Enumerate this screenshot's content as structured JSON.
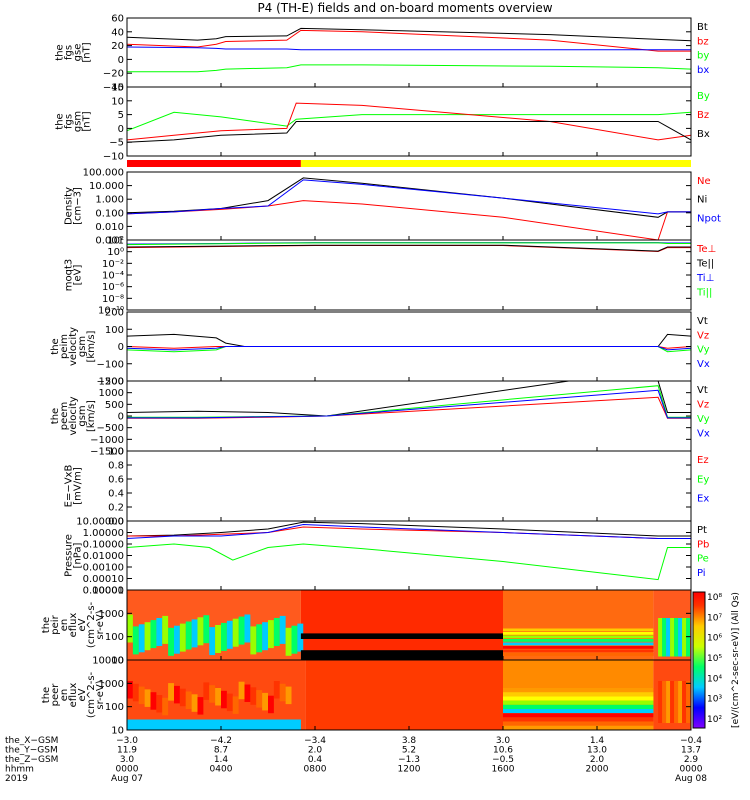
{
  "title": "P4 (TH-E) fields and on-board moments overview",
  "colors": {
    "black": "#000000",
    "red": "#ff0000",
    "green": "#00ff00",
    "blue": "#0000ff",
    "yellow": "#ffff00"
  },
  "chart_data": [
    {
      "type": "line",
      "ylabel_lines": [
        "the",
        "fgs",
        "gse",
        "[nT]"
      ],
      "ylim": [
        -40,
        60
      ],
      "yticks": [
        "60",
        "40",
        "20",
        "0",
        "−20",
        "−40"
      ],
      "legend": [
        {
          "name": "Bt",
          "color": "black"
        },
        {
          "name": "bz",
          "color": "red"
        },
        {
          "name": "by",
          "color": "green"
        },
        {
          "name": "bx",
          "color": "blue"
        }
      ],
      "series": [
        {
          "name": "Bt",
          "color": "black",
          "x": [
            0,
            3.0,
            3.8,
            4.2,
            6.8,
            7.4,
            10.0,
            18.0,
            22.6,
            24
          ],
          "y": [
            32,
            28,
            30,
            33,
            34,
            45,
            43,
            36,
            29,
            27
          ]
        },
        {
          "name": "bz",
          "color": "red",
          "x": [
            0,
            3.0,
            3.8,
            4.2,
            6.8,
            7.4,
            10.0,
            18.0,
            22.6,
            24
          ],
          "y": [
            22,
            18,
            22,
            26,
            28,
            42,
            40,
            28,
            12,
            12
          ]
        },
        {
          "name": "by",
          "color": "green",
          "x": [
            0,
            3.0,
            3.8,
            4.2,
            6.8,
            7.4,
            10.0,
            18.0,
            22.6,
            24
          ],
          "y": [
            -18,
            -18,
            -16,
            -14,
            -12,
            -8,
            -8,
            -10,
            -12,
            -14
          ]
        },
        {
          "name": "bx",
          "color": "blue",
          "x": [
            0,
            3.0,
            3.8,
            4.2,
            6.8,
            7.4,
            10.0,
            18.0,
            22.6,
            24
          ],
          "y": [
            18,
            17,
            16,
            15,
            15,
            14,
            14,
            14,
            14,
            14
          ]
        }
      ]
    },
    {
      "type": "line",
      "ylabel_lines": [
        "the",
        "fgs",
        "gsm",
        "[nT]"
      ],
      "ylim": [
        -15,
        15
      ],
      "yticks": [
        "15",
        "10",
        "5",
        "0",
        "−5",
        "−10"
      ],
      "legend": [
        {
          "name": "By",
          "color": "green"
        },
        {
          "name": "Bz",
          "color": "red"
        },
        {
          "name": "Bx",
          "color": "black"
        }
      ],
      "series": [
        {
          "name": "By",
          "color": "green",
          "x": [
            0,
            2,
            4,
            6.8,
            7.2,
            10,
            18,
            22.6,
            24
          ],
          "y": [
            -4,
            4,
            2,
            -2,
            1,
            3,
            3,
            3,
            4
          ]
        },
        {
          "name": "Bz",
          "color": "red",
          "x": [
            0,
            2,
            4,
            6.8,
            7.2,
            10,
            18,
            22.6,
            24
          ],
          "y": [
            -8,
            -6,
            -4,
            -3,
            8,
            7,
            0,
            -8,
            -6
          ]
        },
        {
          "name": "Bx",
          "color": "black",
          "x": [
            0,
            2,
            4,
            6.8,
            7.2,
            10,
            18,
            22.6,
            24
          ],
          "y": [
            -9,
            -8,
            -6,
            -5,
            0,
            0,
            0,
            0,
            -8
          ]
        }
      ]
    },
    {
      "type": "line",
      "ylabel_lines": [
        "Density",
        "[cm−3]"
      ],
      "yscale": "log",
      "ylim": [
        0.001,
        1000
      ],
      "yticks": [
        "100.000",
        "10.000",
        "1.000",
        "0.100",
        "0.010",
        "0.001"
      ],
      "legend": [
        {
          "name": "Ne",
          "color": "red"
        },
        {
          "name": "Ni",
          "color": "black"
        },
        {
          "name": "Npot",
          "color": "blue"
        }
      ],
      "series": [
        {
          "name": "Ne",
          "color": "red",
          "x": [
            0,
            2,
            4,
            6,
            7.5,
            10,
            16,
            22.6,
            23,
            24
          ],
          "y": [
            0.2,
            0.3,
            0.5,
            1,
            3,
            1.5,
            0.1,
            0.001,
            0.3,
            0.3
          ]
        },
        {
          "name": "Ni",
          "color": "black",
          "x": [
            0,
            2,
            4,
            6,
            7.5,
            10,
            16,
            22.6,
            23,
            24
          ],
          "y": [
            0.25,
            0.35,
            0.6,
            3,
            300,
            100,
            5,
            0.1,
            0.3,
            0.3
          ]
        },
        {
          "name": "Npot",
          "color": "blue",
          "x": [
            0,
            2,
            4,
            6,
            7.5,
            10,
            16,
            22.6,
            23,
            24
          ],
          "y": [
            0.2,
            0.3,
            0.6,
            1,
            200,
            80,
            5,
            0.2,
            0.3,
            0.3
          ]
        }
      ]
    },
    {
      "type": "line",
      "ylabel_lines": [
        "moqt3",
        "[eV]"
      ],
      "yscale": "log",
      "ylim": [
        1e-10,
        10000
      ],
      "yticks": [
        "10²",
        "10⁰",
        "10⁻²",
        "10⁻⁴",
        "10⁻⁶",
        "10⁻⁸",
        "10⁻¹⁰"
      ],
      "legend": [
        {
          "name": "Te⊥",
          "color": "red"
        },
        {
          "name": "Te||",
          "color": "black"
        },
        {
          "name": "Ti⊥",
          "color": "blue"
        },
        {
          "name": "Ti||",
          "color": "green"
        }
      ],
      "series": [
        {
          "name": "Te⊥",
          "color": "red",
          "x": [
            0,
            4,
            8,
            16,
            22.6,
            23,
            24
          ],
          "y": [
            300,
            500,
            800,
            800,
            50,
            300,
            300
          ]
        },
        {
          "name": "Te||",
          "color": "black",
          "x": [
            0,
            4,
            8,
            16,
            22.6,
            23,
            24
          ],
          "y": [
            400,
            600,
            900,
            900,
            60,
            400,
            400
          ]
        },
        {
          "name": "Ti⊥",
          "color": "blue",
          "x": [
            0,
            4,
            8,
            16,
            22.6,
            23,
            24
          ],
          "y": [
            1500,
            2000,
            3000,
            3000,
            3000,
            2500,
            2500
          ]
        },
        {
          "name": "Ti||",
          "color": "green",
          "x": [
            0,
            4,
            8,
            16,
            22.6,
            23,
            24
          ],
          "y": [
            1200,
            1800,
            2600,
            2600,
            2600,
            2000,
            2000
          ]
        }
      ]
    },
    {
      "type": "line",
      "ylabel_lines": [
        "the",
        "peim",
        "velocity",
        "gsm",
        "[km/s]"
      ],
      "ylim": [
        -200,
        200
      ],
      "yticks": [
        "200",
        "100",
        "0",
        "−100",
        "−200"
      ],
      "legend": [
        {
          "name": "Vt",
          "color": "black"
        },
        {
          "name": "Vz",
          "color": "red"
        },
        {
          "name": "Vy",
          "color": "green"
        },
        {
          "name": "Vx",
          "color": "blue"
        }
      ],
      "series": [
        {
          "name": "Vt",
          "color": "black",
          "x": [
            0,
            2,
            3.8,
            4.2,
            5,
            22.6,
            23,
            24
          ],
          "y": [
            60,
            70,
            50,
            20,
            0,
            0,
            70,
            60
          ]
        },
        {
          "name": "Vz",
          "color": "red",
          "x": [
            0,
            2,
            3.8,
            4.2,
            5,
            22.6,
            23,
            24
          ],
          "y": [
            0,
            -10,
            0,
            0,
            0,
            0,
            -10,
            0
          ]
        },
        {
          "name": "Vy",
          "color": "green",
          "x": [
            0,
            2,
            3.8,
            4.2,
            5,
            22.6,
            23,
            24
          ],
          "y": [
            -20,
            -30,
            -20,
            0,
            0,
            0,
            -30,
            -20
          ]
        },
        {
          "name": "Vx",
          "color": "blue",
          "x": [
            0,
            2,
            3.8,
            4.2,
            5,
            22.6,
            23,
            24
          ],
          "y": [
            -10,
            -20,
            -10,
            0,
            0,
            0,
            -20,
            -10
          ]
        }
      ]
    },
    {
      "type": "line",
      "ylabel_lines": [
        "the",
        "peem",
        "velocity",
        "gsm",
        "[km/s]"
      ],
      "ylim": [
        -1500,
        1500
      ],
      "yticks": [
        "1500",
        "1000",
        "500",
        "0",
        "−500",
        "−1000",
        "−1500"
      ],
      "legend": [
        {
          "name": "Vt",
          "color": "black"
        },
        {
          "name": "Vz",
          "color": "red"
        },
        {
          "name": "Vy",
          "color": "green"
        },
        {
          "name": "Vx",
          "color": "blue"
        }
      ],
      "series": [
        {
          "name": "Vt",
          "color": "black",
          "x": [
            0,
            3,
            6,
            8.5,
            18.8,
            22.6,
            23,
            24
          ],
          "y": [
            150,
            200,
            150,
            0,
            1500,
            1500,
            150,
            150
          ]
        },
        {
          "name": "Vz",
          "color": "red",
          "x": [
            0,
            3,
            6,
            8.5,
            22.6,
            23,
            24
          ],
          "y": [
            -100,
            -100,
            -50,
            0,
            800,
            -100,
            -100
          ]
        },
        {
          "name": "Vy",
          "color": "green",
          "x": [
            0,
            3,
            6,
            8.5,
            22.6,
            23,
            24
          ],
          "y": [
            -50,
            -50,
            -20,
            0,
            1300,
            -50,
            -50
          ]
        },
        {
          "name": "Vx",
          "color": "blue",
          "x": [
            0,
            3,
            6,
            8.5,
            22.6,
            23,
            24
          ],
          "y": [
            -80,
            -80,
            -30,
            0,
            1100,
            -80,
            -80
          ]
        }
      ]
    },
    {
      "type": "line",
      "ylabel_lines": [
        "E=−VxB",
        "[mV/m]"
      ],
      "ylim": [
        0,
        1
      ],
      "yticks": [
        "1.0",
        "0.8",
        "0.6",
        "0.4",
        "0.2",
        "0.0"
      ],
      "legend": [
        {
          "name": "Ez",
          "color": "red"
        },
        {
          "name": "Ey",
          "color": "green"
        },
        {
          "name": "Ex",
          "color": "blue"
        }
      ],
      "series": []
    },
    {
      "type": "line",
      "ylabel_lines": [
        "Pressure",
        "[nPa]"
      ],
      "yscale": "log",
      "ylim": [
        1e-05,
        10
      ],
      "yticks": [
        "10.00000",
        "1.00000",
        "0.10000",
        "0.01000",
        "0.00100",
        "0.00010",
        "0.00001"
      ],
      "legend": [
        {
          "name": "Pt",
          "color": "black"
        },
        {
          "name": "Pb",
          "color": "red"
        },
        {
          "name": "Pe",
          "color": "green"
        },
        {
          "name": "Pi",
          "color": "blue"
        }
      ],
      "series": [
        {
          "name": "Pt",
          "color": "black",
          "x": [
            0,
            2,
            4,
            6,
            7.5,
            10,
            16,
            22.6,
            23,
            24
          ],
          "y": [
            0.5,
            0.6,
            1,
            2,
            8,
            6,
            2,
            0.5,
            0.5,
            0.5
          ]
        },
        {
          "name": "Pb",
          "color": "red",
          "x": [
            0,
            2,
            4,
            6,
            7.5,
            10,
            16,
            22.6,
            23,
            24
          ],
          "y": [
            0.5,
            0.5,
            0.7,
            1,
            3,
            2,
            1,
            0.3,
            0.3,
            0.3
          ]
        },
        {
          "name": "Pe",
          "color": "green",
          "x": [
            0,
            2,
            3.5,
            4.5,
            6,
            7.5,
            10,
            16,
            22.6,
            23,
            24
          ],
          "y": [
            0.05,
            0.1,
            0.05,
            0.004,
            0.05,
            0.1,
            0.04,
            0.003,
            8e-05,
            0.05,
            0.05
          ]
        },
        {
          "name": "Pi",
          "color": "blue",
          "x": [
            0,
            2,
            4,
            6,
            7.5,
            10,
            16,
            22.6,
            23,
            24
          ],
          "y": [
            0.3,
            0.5,
            0.5,
            1,
            5,
            3,
            1,
            0.3,
            0.3,
            0.3
          ]
        }
      ]
    },
    {
      "type": "heatmap",
      "ylabel_lines": [
        "the",
        "peir",
        "en",
        "eflux",
        "eV",
        "(cm^2-s-",
        "sr-eV)"
      ],
      "yscale": "log",
      "ylim": [
        5,
        30000
      ],
      "yticks": [
        "10000",
        "1000",
        "100",
        "10"
      ]
    },
    {
      "type": "heatmap",
      "ylabel_lines": [
        "the",
        "peer",
        "en",
        "eflux",
        "eV",
        "(cm^2-s-",
        "sr-eV)"
      ],
      "yscale": "log",
      "ylim": [
        5,
        30000
      ],
      "yticks": [
        "10000",
        "1000",
        "100",
        "10"
      ]
    }
  ],
  "colorbar": {
    "label": "[eV/(cm^2-sec-sr-eV)] (All Qs)",
    "ticks": [
      "10⁸",
      "10⁷",
      "10⁶",
      "10⁵",
      "10⁴",
      "10³",
      "10²"
    ]
  },
  "x_axis": {
    "xlim": [
      0,
      24
    ],
    "tick_positions": [
      0,
      4,
      8,
      12,
      16,
      20,
      24
    ],
    "rows": [
      {
        "label": "the_X−GSM",
        "values": [
          "−3.0",
          "−4.2",
          "−3.4",
          "3.8",
          "3.0",
          "1.4",
          "−0.4"
        ]
      },
      {
        "label": "the_Y−GSM",
        "values": [
          "11.9",
          "8.7",
          "2.0",
          "5.2",
          "10.6",
          "13.0",
          "13.7"
        ]
      },
      {
        "label": "the_Z−GSM",
        "values": [
          "3.0",
          "1.4",
          "0.4",
          "−1.3",
          "−0.5",
          "2.0",
          "2.9"
        ]
      },
      {
        "label": "hhmm",
        "values": [
          "0000",
          "0400",
          "0800",
          "1200",
          "1600",
          "2000",
          "0000"
        ]
      },
      {
        "label": "2019",
        "values": [
          "Aug 07",
          "",
          "",
          "",
          "",
          "",
          "Aug 08"
        ]
      }
    ]
  }
}
